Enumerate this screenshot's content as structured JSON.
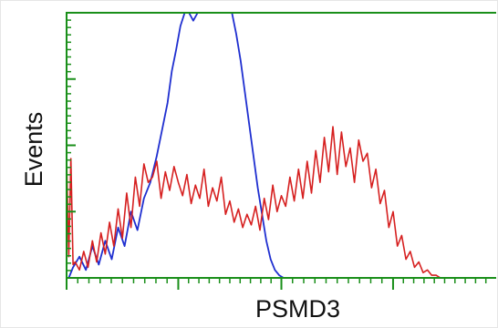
{
  "chart_data": {
    "type": "line",
    "title": "",
    "xlabel": "PSMD3",
    "ylabel": "Events",
    "xlim": [
      0,
      100
    ],
    "ylim": [
      0,
      100
    ],
    "grid": false,
    "legend": "none",
    "x_major_ticks": [
      0,
      26,
      50,
      76
    ],
    "y_major_ticks": [
      0,
      25,
      50,
      75,
      100
    ],
    "colors": {
      "axes": "#1a8f1a",
      "background": "#ffffff",
      "text": "#111111"
    },
    "series": [
      {
        "color": "#1f2fd0",
        "x": [
          0.5,
          1.5,
          3,
          4.5,
          6,
          7.5,
          9,
          10.5,
          12,
          13.5,
          15,
          16.5,
          18,
          19.5,
          21,
          22.5,
          23.5,
          24.5,
          25.5,
          26.5,
          27.5,
          28.5,
          29.5,
          30.5,
          31.5,
          32.5,
          33.5,
          34.5,
          35.5,
          36.5,
          37.5,
          38.5,
          39.5,
          40.5,
          41.5,
          42.5,
          43.5,
          44.5,
          45.5,
          46.5,
          47.5,
          48.5,
          49.5,
          50.5,
          52
        ],
        "y": [
          0,
          4,
          8,
          3,
          12,
          5,
          14,
          7,
          19,
          12,
          25,
          18,
          30,
          36,
          46,
          58,
          66,
          78,
          86,
          95,
          100,
          100,
          97,
          100,
          100,
          100,
          100,
          100,
          100,
          100,
          100,
          100,
          92,
          82,
          70,
          58,
          46,
          34,
          24,
          14,
          7,
          3,
          1,
          0,
          0
        ]
      },
      {
        "color": "#d62020",
        "x": [
          0,
          0.5,
          1,
          1.5,
          2,
          3,
          4,
          5,
          6,
          7,
          8,
          9,
          10,
          11,
          12,
          13,
          14,
          15,
          16,
          17,
          18,
          19,
          20,
          21,
          22,
          23,
          24,
          25,
          26,
          27,
          28,
          29,
          30,
          31,
          32,
          33,
          34,
          35,
          36,
          37,
          38,
          39,
          40,
          41,
          42,
          43,
          44,
          45,
          46,
          47,
          48,
          49,
          50,
          51,
          52,
          53,
          54,
          55,
          56,
          57,
          58,
          59,
          60,
          61,
          62,
          63,
          64,
          65,
          66,
          67,
          68,
          69,
          70,
          71,
          72,
          73,
          74,
          75,
          76,
          77,
          78,
          79,
          80,
          81,
          82,
          83,
          84,
          85,
          86,
          87,
          88,
          89,
          90,
          91,
          92,
          93,
          94,
          95,
          96,
          97,
          98,
          99
        ],
        "y": [
          46,
          8,
          45,
          5,
          6,
          3,
          10,
          4,
          14,
          6,
          17,
          9,
          21,
          12,
          26,
          15,
          32,
          19,
          38,
          27,
          43,
          36,
          38,
          44,
          30,
          40,
          33,
          42,
          36,
          31,
          39,
          28,
          35,
          30,
          41,
          27,
          34,
          29,
          38,
          24,
          29,
          21,
          26,
          19,
          24,
          20,
          27,
          18,
          30,
          22,
          35,
          25,
          31,
          27,
          38,
          29,
          41,
          30,
          44,
          32,
          48,
          36,
          53,
          40,
          57,
          39,
          55,
          42,
          49,
          36,
          52,
          44,
          47,
          34,
          41,
          28,
          33,
          19,
          25,
          12,
          16,
          7,
          10,
          4,
          6,
          2,
          3,
          1,
          1,
          0,
          0,
          0,
          0,
          0,
          0,
          0,
          0,
          0,
          0,
          0,
          0,
          0
        ]
      }
    ]
  }
}
